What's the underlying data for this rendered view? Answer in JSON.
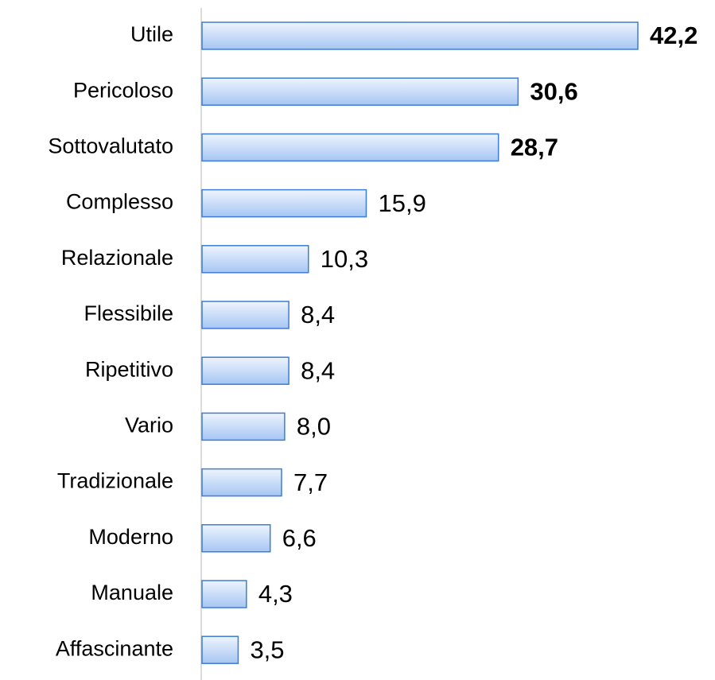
{
  "chart_data": {
    "type": "bar",
    "orientation": "horizontal",
    "categories": [
      "Utile",
      "Pericoloso",
      "Sottovalutato",
      "Complesso",
      "Relazionale",
      "Flessibile",
      "Ripetitivo",
      "Vario",
      "Tradizionale",
      "Moderno",
      "Manuale",
      "Affascinante"
    ],
    "values": [
      42.2,
      30.6,
      28.7,
      15.9,
      10.3,
      8.4,
      8.4,
      8.0,
      7.7,
      6.6,
      4.3,
      3.5
    ],
    "value_labels": [
      "42,2",
      "30,6",
      "28,7",
      "15,9",
      "10,3",
      "8,4",
      "8,4",
      "8,0",
      "7,7",
      "6,6",
      "4,3",
      "3,5"
    ],
    "bold_values": [
      true,
      true,
      true,
      false,
      false,
      false,
      false,
      false,
      false,
      false,
      false,
      false
    ],
    "color": "#3b7dd8"
  }
}
